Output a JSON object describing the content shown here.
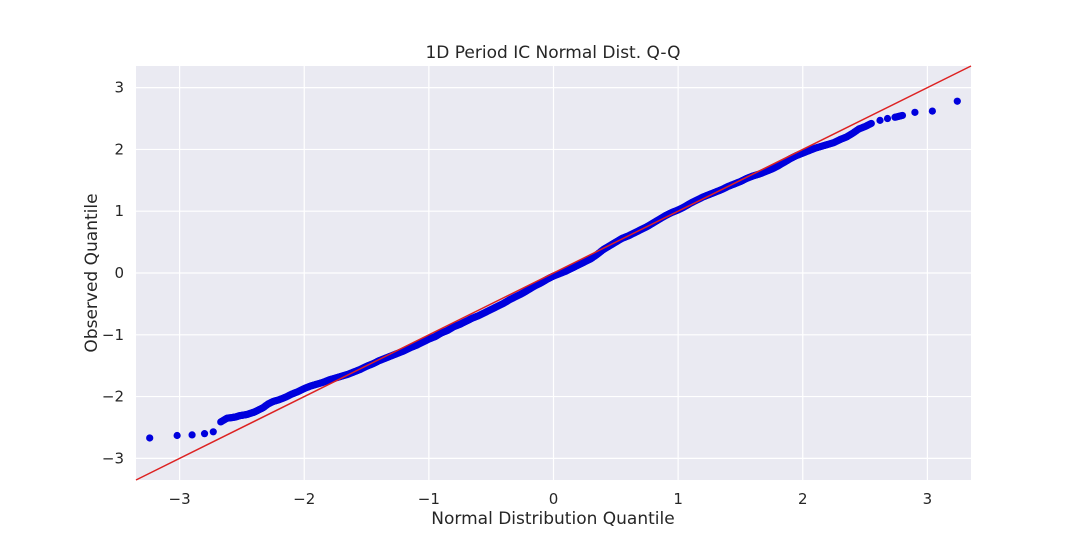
{
  "chart_data": {
    "type": "scatter",
    "title": "1D Period IC Normal Dist. Q-Q",
    "xlabel": "Normal Distribution Quantile",
    "ylabel": "Observed Quantile",
    "xlim": [
      -3.35,
      3.35
    ],
    "ylim": [
      -3.35,
      3.35
    ],
    "xticks": [
      -3,
      -2,
      -1,
      0,
      1,
      2,
      3
    ],
    "yticks": [
      -3,
      -2,
      -1,
      0,
      1,
      2,
      3
    ],
    "xtick_labels": [
      "−3",
      "−2",
      "−1",
      "0",
      "1",
      "2",
      "3"
    ],
    "ytick_labels": [
      "−3",
      "−2",
      "−1",
      "0",
      "1",
      "2",
      "3"
    ],
    "grid": true,
    "background_color": "#eaeaf2",
    "grid_color": "#ffffff",
    "point_color": "#0000dd",
    "line_color": "#dd2222",
    "series": [
      {
        "kind": "points",
        "x": [
          -3.24,
          -3.02,
          -2.9,
          -2.8,
          -2.73,
          -2.67,
          -2.62,
          -2.58,
          -2.55,
          -2.52,
          -2.49,
          -2.46,
          -2.43,
          -2.4,
          -2.37,
          -2.33,
          -2.29,
          -2.25,
          -2.2,
          -2.15,
          -2.1,
          -2.05,
          -2.0,
          -1.95,
          -1.9,
          -1.85,
          -1.8,
          -1.75,
          -1.7,
          -1.65,
          -1.6,
          -1.55,
          -1.5,
          -1.45,
          -1.4,
          -1.35,
          -1.3,
          -1.25,
          -1.2,
          -1.15,
          -1.1,
          -1.05,
          -1.0,
          -0.95,
          -0.9,
          -0.85,
          -0.8,
          -0.75,
          -0.7,
          -0.65,
          -0.6,
          -0.55,
          -0.5,
          -0.45,
          -0.4,
          -0.35,
          -0.3,
          -0.25,
          -0.2,
          -0.15,
          -0.1,
          -0.05,
          0.0,
          0.05,
          0.1,
          0.15,
          0.2,
          0.25,
          0.3,
          0.35,
          0.4,
          0.45,
          0.5,
          0.55,
          0.6,
          0.65,
          0.7,
          0.75,
          0.8,
          0.85,
          0.9,
          0.95,
          1.0,
          1.05,
          1.1,
          1.15,
          1.2,
          1.25,
          1.3,
          1.35,
          1.4,
          1.45,
          1.5,
          1.55,
          1.6,
          1.65,
          1.7,
          1.75,
          1.8,
          1.85,
          1.9,
          1.95,
          2.0,
          2.05,
          2.1,
          2.15,
          2.2,
          2.25,
          2.3,
          2.35,
          2.4,
          2.45,
          2.5,
          2.55,
          2.62,
          2.68,
          2.74,
          2.8,
          2.9,
          3.04,
          3.24
        ],
        "y": [
          -2.67,
          -2.63,
          -2.62,
          -2.6,
          -2.57,
          -2.41,
          -2.35,
          -2.34,
          -2.33,
          -2.31,
          -2.3,
          -2.29,
          -2.27,
          -2.25,
          -2.22,
          -2.18,
          -2.12,
          -2.08,
          -2.05,
          -2.01,
          -1.96,
          -1.92,
          -1.87,
          -1.83,
          -1.8,
          -1.77,
          -1.73,
          -1.7,
          -1.67,
          -1.64,
          -1.6,
          -1.56,
          -1.51,
          -1.47,
          -1.42,
          -1.38,
          -1.34,
          -1.3,
          -1.26,
          -1.21,
          -1.17,
          -1.12,
          -1.07,
          -1.03,
          -0.97,
          -0.93,
          -0.87,
          -0.83,
          -0.78,
          -0.73,
          -0.69,
          -0.64,
          -0.59,
          -0.54,
          -0.49,
          -0.43,
          -0.38,
          -0.33,
          -0.27,
          -0.21,
          -0.16,
          -0.1,
          -0.05,
          -0.01,
          0.03,
          0.08,
          0.13,
          0.18,
          0.23,
          0.3,
          0.38,
          0.44,
          0.5,
          0.56,
          0.6,
          0.65,
          0.7,
          0.75,
          0.81,
          0.87,
          0.93,
          0.98,
          1.02,
          1.07,
          1.13,
          1.18,
          1.23,
          1.27,
          1.31,
          1.35,
          1.4,
          1.44,
          1.48,
          1.53,
          1.57,
          1.6,
          1.64,
          1.68,
          1.73,
          1.79,
          1.85,
          1.9,
          1.94,
          1.98,
          2.02,
          2.05,
          2.08,
          2.11,
          2.16,
          2.2,
          2.26,
          2.33,
          2.37,
          2.42,
          2.47,
          2.5,
          2.52,
          2.55,
          2.6,
          2.62,
          2.78
        ]
      },
      {
        "kind": "reference-line",
        "x": [
          -3.35,
          3.35
        ],
        "y": [
          -3.35,
          3.35
        ]
      }
    ]
  }
}
